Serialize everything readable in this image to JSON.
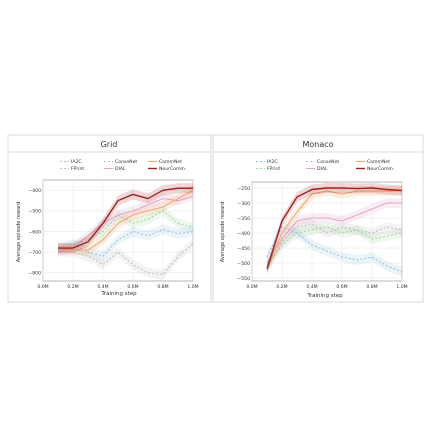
{
  "chart_data": [
    {
      "type": "line",
      "title": "Grid",
      "xlabel": "Training step",
      "ylabel": "Average episode reward",
      "xlim": [
        0,
        1.0
      ],
      "ylim": [
        -840,
        -350
      ],
      "x_ticks": [
        "0.0M",
        "0.2M",
        "0.4M",
        "0.6M",
        "0.8M",
        "1.0M"
      ],
      "y_ticks": [
        -400,
        -500,
        -600,
        -700,
        -800
      ],
      "x": [
        0.1,
        0.2,
        0.3,
        0.4,
        0.5,
        0.6,
        0.7,
        0.8,
        0.9,
        1.0
      ],
      "grid": true,
      "legend": "top",
      "series": [
        {
          "name": "IA2C",
          "color": "#8cc0dd",
          "dash": "2,2",
          "values": [
            -680,
            -660,
            -700,
            -720,
            -640,
            -600,
            -620,
            -590,
            -610,
            -600
          ]
        },
        {
          "name": "FPrint",
          "color": "#9bd59b",
          "dash": "2,2",
          "values": [
            -690,
            -670,
            -640,
            -600,
            -520,
            -560,
            -540,
            -500,
            -560,
            -580
          ]
        },
        {
          "name": "ConseNet",
          "color": "#bbbbbb",
          "dash": "2,2",
          "values": [
            -690,
            -700,
            -720,
            -760,
            -700,
            -760,
            -800,
            -810,
            -720,
            -660
          ]
        },
        {
          "name": "DIAL",
          "color": "#e4a3c8",
          "dash": "",
          "values": [
            -700,
            -680,
            -620,
            -560,
            -520,
            -500,
            -470,
            -440,
            -450,
            -430
          ]
        },
        {
          "name": "CommNet",
          "color": "#f3a36b",
          "dash": "",
          "values": [
            -680,
            -690,
            -690,
            -640,
            -560,
            -520,
            -500,
            -480,
            -440,
            -400
          ]
        },
        {
          "name": "NeurComm",
          "color": "#a32020",
          "dash": "",
          "values": [
            -680,
            -680,
            -650,
            -560,
            -450,
            -420,
            -440,
            -400,
            -390,
            -390
          ]
        }
      ]
    },
    {
      "type": "line",
      "title": "Monaco",
      "xlabel": "Training step",
      "ylabel": "Average episode reward",
      "xlim": [
        0,
        1.0
      ],
      "ylim": [
        -560,
        -230
      ],
      "x_ticks": [
        "0.0M",
        "0.2M",
        "0.4M",
        "0.6M",
        "0.8M",
        "1.0M"
      ],
      "y_ticks": [
        -250,
        -300,
        -350,
        -400,
        -450,
        -500,
        -550
      ],
      "x": [
        0.1,
        0.2,
        0.3,
        0.4,
        0.5,
        0.6,
        0.7,
        0.8,
        0.9,
        1.0
      ],
      "grid": true,
      "legend": "top",
      "series": [
        {
          "name": "IA2C",
          "color": "#8cc0dd",
          "dash": "2,2",
          "values": [
            -480,
            -380,
            -400,
            -440,
            -460,
            -480,
            -490,
            -480,
            -510,
            -530
          ]
        },
        {
          "name": "FPrint",
          "color": "#9bd59b",
          "dash": "2,2",
          "values": [
            -510,
            -440,
            -400,
            -390,
            -380,
            -400,
            -390,
            -420,
            -410,
            -400
          ]
        },
        {
          "name": "ConseNet",
          "color": "#bbbbbb",
          "dash": "2,2",
          "values": [
            -520,
            -430,
            -380,
            -370,
            -400,
            -380,
            -390,
            -400,
            -380,
            -390
          ]
        },
        {
          "name": "DIAL",
          "color": "#e4a3c8",
          "dash": "",
          "values": [
            -500,
            -420,
            -360,
            -350,
            -350,
            -360,
            -340,
            -320,
            -300,
            -300
          ]
        },
        {
          "name": "CommNet",
          "color": "#f3a36b",
          "dash": "",
          "values": [
            -520,
            -400,
            -330,
            -270,
            -260,
            -270,
            -260,
            -260,
            -260,
            -260
          ]
        },
        {
          "name": "NeurComm",
          "color": "#a32020",
          "dash": "",
          "values": [
            -520,
            -360,
            -280,
            -255,
            -250,
            -250,
            -252,
            -250,
            -255,
            -258
          ]
        }
      ]
    }
  ]
}
